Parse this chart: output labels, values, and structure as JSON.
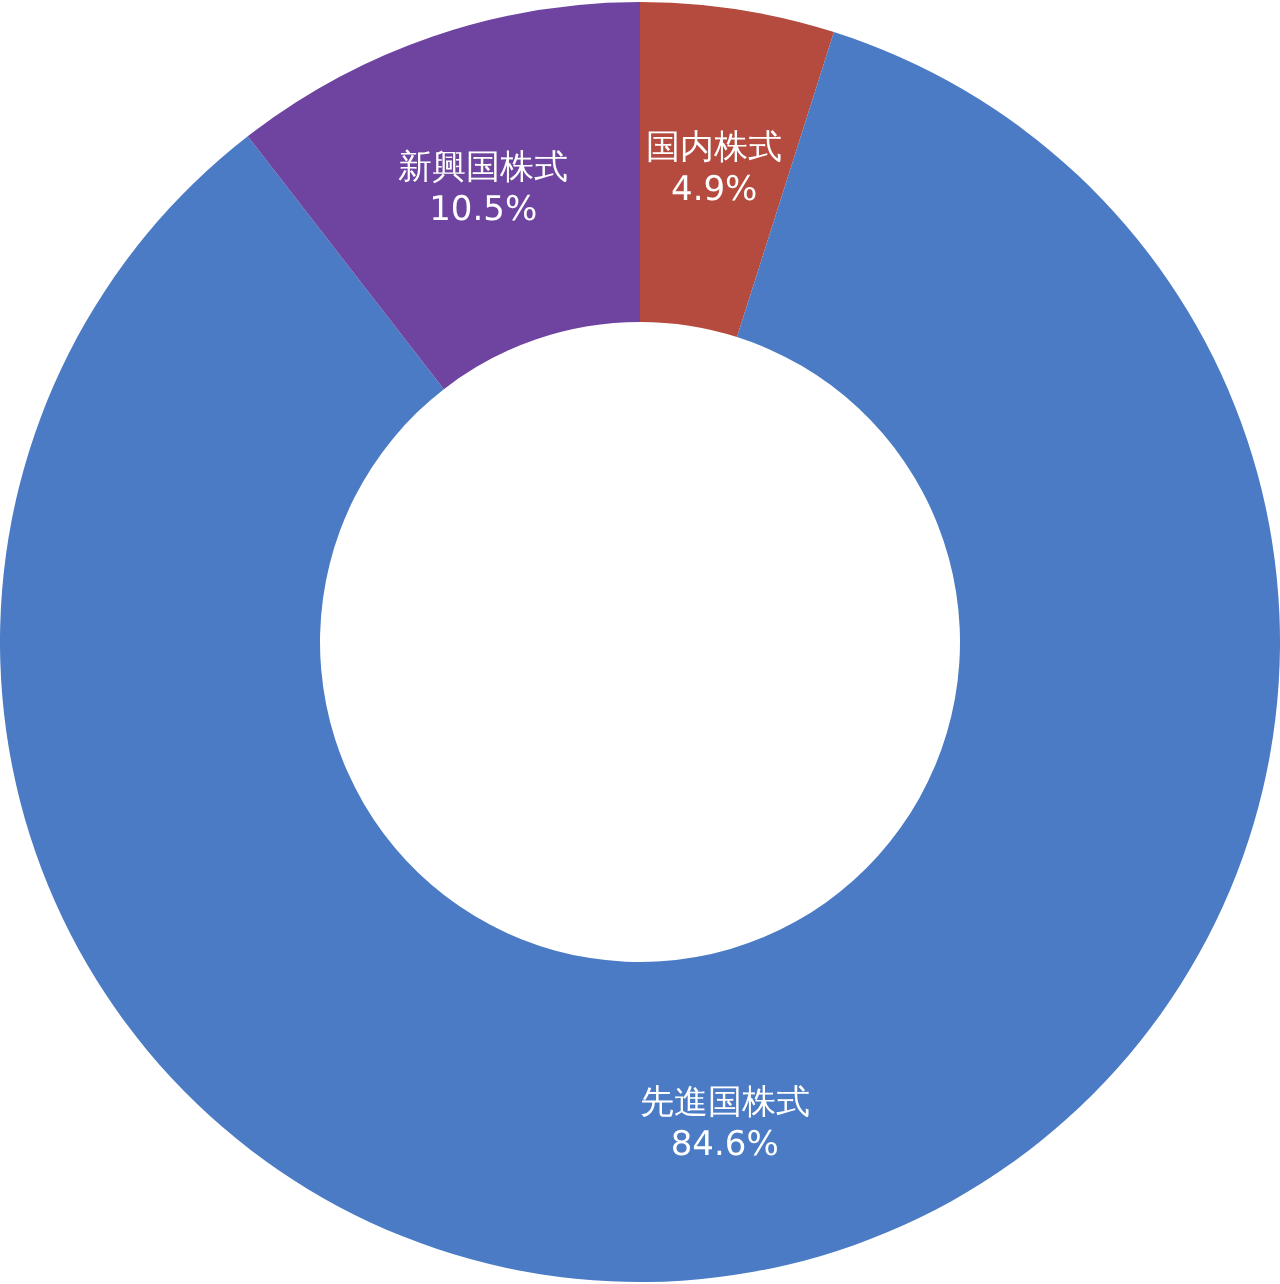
{
  "chart_data": {
    "type": "donut",
    "categories": [
      "国内株式",
      "先進国株式",
      "新興国株式"
    ],
    "values": [
      4.9,
      84.6,
      10.5
    ],
    "colors": [
      "#b54a3e",
      "#4a7bc4",
      "#6e44a0"
    ],
    "value_labels": [
      "4.9%",
      "84.6%",
      "10.5%"
    ]
  }
}
